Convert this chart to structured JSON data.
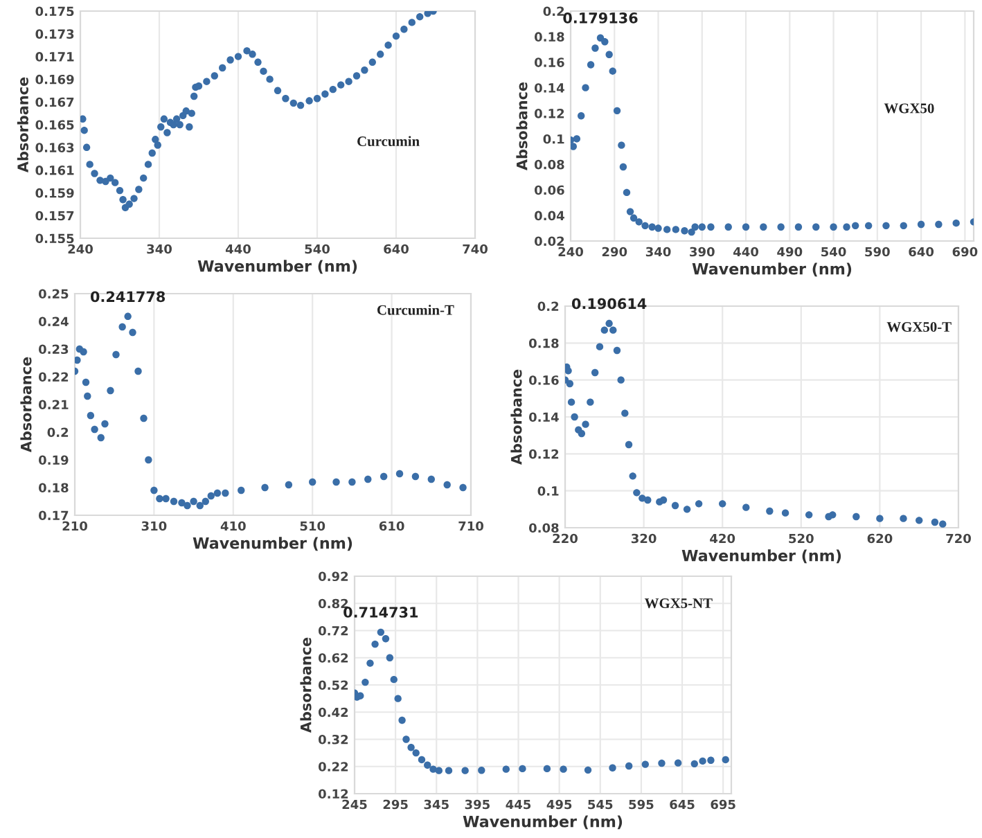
{
  "chart_data": [
    {
      "type": "scatter",
      "xlabel": "Wavenumber (nm)",
      "ylabel": "Absorbance",
      "marker": "circle",
      "grid": "x",
      "xlim": [
        240,
        740
      ],
      "xticks": [
        240,
        340,
        440,
        540,
        640,
        740
      ],
      "ylim": [
        0.155,
        0.175
      ],
      "yticks": [
        0.155,
        0.157,
        0.159,
        0.161,
        0.163,
        0.165,
        0.167,
        0.169,
        0.171,
        0.173,
        0.175
      ],
      "annotations": [
        "Curcumin"
      ],
      "series": [
        {
          "color": "#3a6ea8",
          "x": [
            243,
            245,
            248,
            252,
            258,
            265,
            272,
            278,
            284,
            290,
            294,
            297,
            302,
            308,
            314,
            320,
            326,
            331,
            335,
            338,
            342,
            346,
            350,
            354,
            358,
            362,
            366,
            370,
            374,
            378,
            381,
            384,
            386,
            390,
            400,
            410,
            420,
            430,
            440,
            451,
            458,
            465,
            472,
            480,
            490,
            500,
            510,
            519,
            530,
            540,
            550,
            560,
            570,
            580,
            590,
            600,
            610,
            620,
            630,
            640,
            650,
            660,
            670,
            680,
            687
          ],
          "values": [
            0.1655,
            0.1645,
            0.163,
            0.1615,
            0.1607,
            0.1601,
            0.16,
            0.1603,
            0.1599,
            0.1592,
            0.1584,
            0.1577,
            0.158,
            0.1585,
            0.1593,
            0.1603,
            0.1615,
            0.1625,
            0.1637,
            0.1632,
            0.1648,
            0.1655,
            0.1643,
            0.1652,
            0.165,
            0.1655,
            0.165,
            0.1658,
            0.1662,
            0.1648,
            0.166,
            0.1675,
            0.1683,
            0.1684,
            0.1688,
            0.1693,
            0.17,
            0.1707,
            0.171,
            0.1715,
            0.1712,
            0.1705,
            0.1697,
            0.169,
            0.168,
            0.1673,
            0.1669,
            0.1667,
            0.1671,
            0.1673,
            0.1677,
            0.1681,
            0.1685,
            0.1688,
            0.1693,
            0.1698,
            0.1705,
            0.1712,
            0.172,
            0.1728,
            0.1734,
            0.174,
            0.1745,
            0.1748,
            0.175
          ]
        }
      ]
    },
    {
      "type": "scatter",
      "xlabel": "Wavenumber (nm)",
      "ylabel": "Absobance",
      "marker": "circle",
      "grid": "x",
      "xlim": [
        240,
        700
      ],
      "xticks": [
        240,
        290,
        340,
        390,
        440,
        490,
        540,
        590,
        640,
        690
      ],
      "ylim": [
        0.02,
        0.2
      ],
      "yticks": [
        0.02,
        0.04,
        0.06,
        0.08,
        0.1,
        0.12,
        0.14,
        0.16,
        0.18,
        0.2
      ],
      "annotations": [
        {
          "text": "0.179136",
          "x": 274,
          "y": 0.179136
        },
        "WGX50"
      ],
      "series": [
        {
          "color": "#3a6ea8",
          "x": [
            240,
            243,
            247,
            252,
            257,
            263,
            268,
            274,
            279,
            284,
            288,
            293,
            298,
            300,
            304,
            308,
            312,
            318,
            325,
            333,
            340,
            350,
            360,
            370,
            378,
            382,
            390,
            400,
            420,
            440,
            460,
            480,
            500,
            520,
            540,
            555,
            565,
            580,
            600,
            620,
            640,
            660,
            680,
            700
          ],
          "values": [
            0.099,
            0.094,
            0.1,
            0.118,
            0.14,
            0.158,
            0.171,
            0.179,
            0.176,
            0.166,
            0.153,
            0.122,
            0.095,
            0.078,
            0.058,
            0.043,
            0.038,
            0.035,
            0.032,
            0.031,
            0.03,
            0.029,
            0.029,
            0.028,
            0.027,
            0.031,
            0.031,
            0.031,
            0.031,
            0.031,
            0.031,
            0.031,
            0.031,
            0.031,
            0.031,
            0.031,
            0.032,
            0.032,
            0.032,
            0.032,
            0.033,
            0.033,
            0.034,
            0.035
          ]
        }
      ]
    },
    {
      "type": "scatter",
      "xlabel": "Wavenumber (nm)",
      "ylabel": "Absorbance",
      "marker": "circle",
      "grid": "x",
      "xlim": [
        210,
        710
      ],
      "xticks": [
        210,
        310,
        410,
        510,
        610,
        710
      ],
      "ylim": [
        0.17,
        0.25
      ],
      "yticks": [
        0.17,
        0.18,
        0.19,
        0.2,
        0.21,
        0.22,
        0.23,
        0.24,
        0.25
      ],
      "annotations": [
        {
          "text": "0.241778",
          "x": 277,
          "y": 0.241778
        },
        "Curcumin-T"
      ],
      "series": [
        {
          "color": "#3a6ea8",
          "x": [
            210,
            213,
            216,
            221,
            224,
            226,
            230,
            235,
            243,
            248,
            255,
            262,
            270,
            277,
            283,
            290,
            297,
            303,
            310,
            317,
            325,
            335,
            345,
            352,
            360,
            368,
            375,
            382,
            390,
            400,
            420,
            450,
            480,
            510,
            540,
            560,
            580,
            600,
            620,
            640,
            660,
            680,
            700
          ],
          "values": [
            0.222,
            0.226,
            0.23,
            0.229,
            0.218,
            0.213,
            0.206,
            0.201,
            0.198,
            0.203,
            0.215,
            0.228,
            0.238,
            0.2418,
            0.236,
            0.222,
            0.205,
            0.19,
            0.179,
            0.176,
            0.176,
            0.175,
            0.1745,
            0.1735,
            0.175,
            0.1735,
            0.175,
            0.177,
            0.178,
            0.178,
            0.179,
            0.18,
            0.181,
            0.182,
            0.182,
            0.182,
            0.183,
            0.184,
            0.185,
            0.184,
            0.183,
            0.181,
            0.18
          ]
        }
      ]
    },
    {
      "type": "scatter",
      "xlabel": "Wavenumber (nm)",
      "ylabel": "Absorbance",
      "marker": "circle",
      "grid": true,
      "xlim": [
        220,
        720
      ],
      "xticks": [
        220,
        320,
        420,
        520,
        620,
        720
      ],
      "ylim": [
        0.08,
        0.2
      ],
      "yticks": [
        0.08,
        0.1,
        0.12,
        0.14,
        0.16,
        0.18,
        0.2
      ],
      "annotations": [
        {
          "text": "0.190614",
          "x": 276,
          "y": 0.190614
        },
        "WGX50-T"
      ],
      "series": [
        {
          "color": "#3a6ea8",
          "x": [
            220,
            222,
            224,
            226,
            228,
            232,
            237,
            241,
            246,
            252,
            258,
            264,
            270,
            276,
            281,
            286,
            291,
            296,
            301,
            306,
            311,
            318,
            325,
            340,
            345,
            360,
            375,
            390,
            420,
            450,
            480,
            500,
            530,
            555,
            560,
            590,
            620,
            650,
            670,
            690,
            700
          ],
          "values": [
            0.16,
            0.167,
            0.165,
            0.158,
            0.148,
            0.14,
            0.133,
            0.131,
            0.136,
            0.148,
            0.164,
            0.178,
            0.187,
            0.1906,
            0.187,
            0.176,
            0.16,
            0.142,
            0.125,
            0.108,
            0.099,
            0.096,
            0.095,
            0.094,
            0.095,
            0.092,
            0.09,
            0.093,
            0.093,
            0.091,
            0.089,
            0.088,
            0.087,
            0.086,
            0.087,
            0.086,
            0.085,
            0.085,
            0.084,
            0.083,
            0.082
          ]
        }
      ]
    },
    {
      "type": "scatter",
      "xlabel": "Wavenumber (nm)",
      "ylabel": "Absorbance",
      "marker": "circle",
      "grid": true,
      "xlim": [
        245,
        705
      ],
      "xticks": [
        245,
        295,
        345,
        395,
        445,
        495,
        545,
        595,
        645,
        695
      ],
      "ylim": [
        0.12,
        0.92
      ],
      "yticks": [
        0.12,
        0.22,
        0.32,
        0.42,
        0.52,
        0.62,
        0.72,
        0.82,
        0.92
      ],
      "annotations": [
        {
          "text": "0.714731",
          "x": 277,
          "y": 0.714731
        },
        "WGX5-NT"
      ],
      "series": [
        {
          "color": "#3a6ea8",
          "x": [
            245,
            248,
            252,
            258,
            264,
            270,
            277,
            283,
            288,
            293,
            298,
            303,
            308,
            314,
            320,
            327,
            334,
            341,
            348,
            360,
            380,
            400,
            430,
            450,
            480,
            500,
            530,
            560,
            580,
            600,
            620,
            640,
            660,
            670,
            680,
            698
          ],
          "values": [
            0.49,
            0.475,
            0.48,
            0.53,
            0.6,
            0.67,
            0.714,
            0.69,
            0.62,
            0.54,
            0.47,
            0.39,
            0.32,
            0.29,
            0.27,
            0.245,
            0.225,
            0.21,
            0.205,
            0.205,
            0.205,
            0.206,
            0.21,
            0.212,
            0.212,
            0.21,
            0.207,
            0.215,
            0.222,
            0.228,
            0.232,
            0.233,
            0.23,
            0.24,
            0.243,
            0.245
          ]
        }
      ]
    }
  ]
}
